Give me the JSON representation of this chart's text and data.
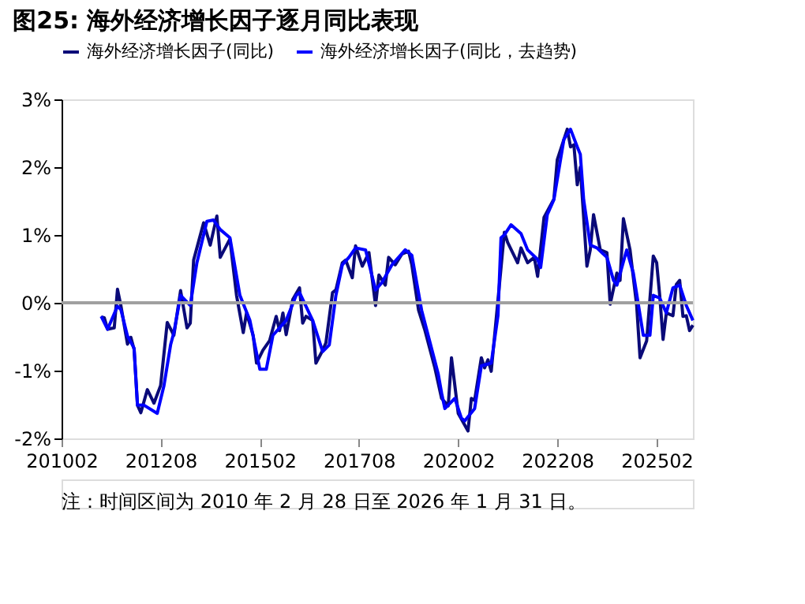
{
  "chart_data": {
    "type": "line",
    "title": "图25:  海外经济增长因子逐月同比表现",
    "annotations": [
      "注：时间区间为 2010 年 2 月 28 日至 2026 年 1 月 31 日。"
    ],
    "xlim": [
      "2010-02",
      "2026-01"
    ],
    "xticks": [
      {
        "value": "2010-02",
        "label": "201002"
      },
      {
        "value": "2012-08",
        "label": "201208"
      },
      {
        "value": "2015-02",
        "label": "201502"
      },
      {
        "value": "2017-08",
        "label": "201708"
      },
      {
        "value": "2020-02",
        "label": "202002"
      },
      {
        "value": "2022-08",
        "label": "202208"
      },
      {
        "value": "2025-02",
        "label": "202502"
      }
    ],
    "ylim": [
      -2,
      3
    ],
    "yticks": [
      {
        "value": -2,
        "label": "-2%"
      },
      {
        "value": -1,
        "label": "-1%"
      },
      {
        "value": 0,
        "label": "0%"
      },
      {
        "value": 1,
        "label": "1%"
      },
      {
        "value": 2,
        "label": "2%"
      },
      {
        "value": 3,
        "label": "3%"
      }
    ],
    "grid": false,
    "legend": "top",
    "line_style": "solid",
    "marker": "none",
    "ref_lines": [
      {
        "axis": "y",
        "value": 0,
        "label": null,
        "color": "#a0a0a0"
      }
    ],
    "series": [
      {
        "name": "海外经济增长因子(同比)",
        "color": "#0a0a78",
        "x": [
          "2011-02",
          "2011-03",
          "2011-04",
          "2011-06",
          "2011-07",
          "2011-08",
          "2011-10",
          "2011-11",
          "2011-12",
          "2012-01",
          "2012-02",
          "2012-04",
          "2012-06",
          "2012-08",
          "2012-10",
          "2012-12",
          "2013-02",
          "2013-04",
          "2013-05",
          "2013-06",
          "2013-09",
          "2013-11",
          "2014-01",
          "2014-02",
          "2014-05",
          "2014-07",
          "2014-09",
          "2014-10",
          "2014-12",
          "2015-01",
          "2015-03",
          "2015-05",
          "2015-07",
          "2015-08",
          "2015-09",
          "2015-10",
          "2015-12",
          "2016-02",
          "2016-03",
          "2016-04",
          "2016-06",
          "2016-07",
          "2016-09",
          "2016-10",
          "2016-12",
          "2017-01",
          "2017-03",
          "2017-04",
          "2017-06",
          "2017-07",
          "2017-09",
          "2017-11",
          "2018-01",
          "2018-02",
          "2018-04",
          "2018-05",
          "2018-07",
          "2018-09",
          "2018-11",
          "2018-12",
          "2019-02",
          "2019-04",
          "2019-07",
          "2019-09",
          "2019-11",
          "2019-12",
          "2020-02",
          "2020-05",
          "2020-06",
          "2020-07",
          "2020-09",
          "2020-10",
          "2020-11",
          "2020-12",
          "2021-04",
          "2021-05",
          "2021-08",
          "2021-09",
          "2021-11",
          "2022-01",
          "2022-02",
          "2022-04",
          "2022-07",
          "2022-08",
          "2022-11",
          "2022-12",
          "2023-01",
          "2023-02",
          "2023-03",
          "2023-05",
          "2023-06",
          "2023-07",
          "2023-09",
          "2023-11",
          "2023-12",
          "2024-02",
          "2024-03",
          "2024-04",
          "2024-06",
          "2024-08",
          "2024-09",
          "2024-11",
          "2025-01",
          "2025-02",
          "2025-03",
          "2025-04",
          "2025-05",
          "2025-07",
          "2025-08",
          "2025-09",
          "2025-10",
          "2025-11",
          "2025-12",
          "2026-01"
        ],
        "values": [
          -0.21,
          -0.22,
          -0.39,
          -0.37,
          0.2,
          -0.04,
          -0.61,
          -0.51,
          -0.69,
          -1.51,
          -1.62,
          -1.28,
          -1.48,
          -1.22,
          -0.29,
          -0.48,
          0.18,
          -0.37,
          -0.3,
          0.63,
          1.18,
          0.85,
          1.28,
          0.67,
          0.94,
          0.11,
          -0.44,
          -0.15,
          -0.48,
          -0.89,
          -0.7,
          -0.56,
          -0.2,
          -0.41,
          -0.15,
          -0.47,
          0.05,
          0.22,
          -0.3,
          -0.2,
          -0.26,
          -0.89,
          -0.7,
          -0.59,
          0.15,
          0.19,
          0.59,
          0.63,
          0.37,
          0.84,
          0.54,
          0.74,
          -0.04,
          0.41,
          0.26,
          0.67,
          0.56,
          0.72,
          0.76,
          0.56,
          -0.11,
          -0.41,
          -0.96,
          -1.41,
          -1.52,
          -0.81,
          -1.63,
          -1.89,
          -1.41,
          -1.44,
          -0.81,
          -0.96,
          -0.84,
          -1.01,
          1.04,
          0.89,
          0.59,
          0.81,
          0.59,
          0.67,
          0.39,
          1.26,
          1.53,
          2.11,
          2.56,
          2.3,
          2.33,
          1.74,
          2.0,
          0.54,
          0.78,
          1.3,
          0.78,
          0.74,
          -0.02,
          0.44,
          0.33,
          1.24,
          0.78,
          -0.04,
          -0.81,
          -0.56,
          0.69,
          0.59,
          0.11,
          -0.54,
          -0.15,
          -0.19,
          0.27,
          0.33,
          -0.2,
          -0.19,
          -0.41,
          -0.33
        ]
      },
      {
        "name": "海外经济增长因子(同比，去趋势)",
        "color": "#0000ff",
        "x": [
          "2011-02",
          "2011-04",
          "2011-07",
          "2011-08",
          "2011-10",
          "2011-12",
          "2012-01",
          "2012-03",
          "2012-07",
          "2012-09",
          "2012-11",
          "2012-12",
          "2013-02",
          "2013-05",
          "2013-07",
          "2013-10",
          "2013-12",
          "2014-02",
          "2014-05",
          "2014-08",
          "2014-11",
          "2015-02",
          "2015-04",
          "2015-06",
          "2015-10",
          "2016-01",
          "2016-02",
          "2016-06",
          "2016-09",
          "2016-11",
          "2017-01",
          "2017-03",
          "2017-05",
          "2017-07",
          "2017-10",
          "2018-01",
          "2018-03",
          "2018-06",
          "2018-10",
          "2018-12",
          "2019-03",
          "2019-08",
          "2019-09",
          "2019-10",
          "2020-01",
          "2020-03",
          "2020-04",
          "2020-07",
          "2020-09",
          "2020-12",
          "2021-02",
          "2021-03",
          "2021-04",
          "2021-06",
          "2021-09",
          "2021-11",
          "2022-02",
          "2022-03",
          "2022-05",
          "2022-07",
          "2022-10",
          "2022-12",
          "2023-02",
          "2023-03",
          "2023-04",
          "2023-06",
          "2023-08",
          "2023-11",
          "2024-01",
          "2024-02",
          "2024-05",
          "2024-07",
          "2024-10",
          "2024-12",
          "2025-01",
          "2025-03",
          "2025-05",
          "2025-07",
          "2025-09",
          "2025-11",
          "2026-01"
        ],
        "values": [
          -0.2,
          -0.39,
          -0.05,
          -0.1,
          -0.49,
          -0.67,
          -1.51,
          -1.51,
          -1.63,
          -1.22,
          -0.62,
          -0.44,
          0.11,
          -0.04,
          0.59,
          1.2,
          1.22,
          1.08,
          0.96,
          0.11,
          -0.26,
          -0.98,
          -0.98,
          -0.48,
          -0.26,
          0.11,
          0.15,
          -0.26,
          -0.72,
          -0.62,
          0.11,
          0.56,
          0.67,
          0.81,
          0.78,
          0.19,
          0.3,
          0.56,
          0.78,
          0.7,
          -0.11,
          -1.05,
          -1.33,
          -1.56,
          -1.41,
          -1.7,
          -1.74,
          -1.56,
          -0.93,
          -0.89,
          -0.19,
          0.96,
          1.0,
          1.15,
          1.02,
          0.78,
          0.64,
          0.52,
          1.3,
          1.52,
          2.41,
          2.56,
          2.3,
          2.19,
          1.52,
          0.85,
          0.81,
          0.67,
          0.33,
          0.26,
          0.78,
          0.44,
          -0.48,
          -0.48,
          0.11,
          0.07,
          -0.15,
          0.22,
          0.26,
          -0.04,
          -0.26
        ]
      }
    ]
  }
}
